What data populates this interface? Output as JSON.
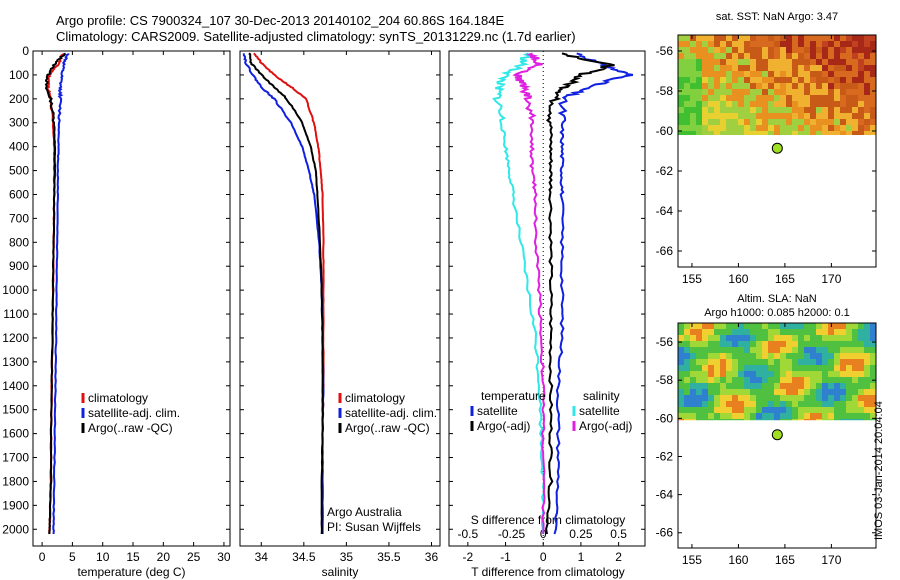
{
  "header": {
    "line1": "Argo profile: CS 7900324_107 30-Dec-2013 20140102_204 60.86S 164.184E",
    "line2": "Climatology: CARS2009. Satellite-adjusted climatology: synTS_20131229.nc (1.7d earlier)"
  },
  "side_label": "IMOS 03-Jan-2014 20:04:04",
  "colors": {
    "climatology": "#e01010",
    "satellite": "#1020e0",
    "argo": "#000000",
    "s_satellite": "#30e8e8",
    "s_argo": "#e020e0",
    "marker": "#a0e020"
  },
  "chart_data": [
    {
      "id": "temperature",
      "type": "line",
      "xlabel": "temperature (deg C)",
      "ylabel": "",
      "xlim": [
        -1.5,
        31
      ],
      "ylim": [
        2070,
        0
      ],
      "xticks": [
        0,
        5,
        10,
        15,
        20,
        25,
        30
      ],
      "yticks": [
        0,
        100,
        200,
        300,
        400,
        500,
        600,
        700,
        800,
        900,
        1000,
        1100,
        1200,
        1300,
        1400,
        1500,
        1600,
        1700,
        1800,
        1900,
        2000
      ],
      "legend": [
        "climatology",
        "satellite-adj. clim.",
        "Argo(..raw -QC)"
      ],
      "legend_position": "lower-right",
      "series": [
        {
          "name": "climatology",
          "color": "#e01010",
          "x": [
            3.4,
            2.8,
            1.2,
            1.0,
            1.3,
            1.8,
            2.0,
            2.0,
            2.0,
            1.9,
            1.8,
            1.7,
            1.6,
            1.5,
            1.4,
            1.3,
            1.2
          ],
          "y": [
            10,
            50,
            100,
            150,
            200,
            300,
            400,
            500,
            600,
            800,
            1000,
            1200,
            1400,
            1600,
            1800,
            1950,
            2020
          ]
        },
        {
          "name": "satellite-adj. clim.",
          "color": "#1020e0",
          "x": [
            4.3,
            3.6,
            3.2,
            3.0,
            3.0,
            2.8,
            2.7,
            2.6,
            2.6,
            2.5,
            2.4,
            2.3,
            2.2,
            2.1,
            2.0,
            1.9,
            1.9
          ],
          "y": [
            10,
            50,
            100,
            150,
            200,
            300,
            400,
            500,
            600,
            800,
            1000,
            1200,
            1400,
            1600,
            1800,
            1950,
            2020
          ]
        },
        {
          "name": "Argo(..raw -QC)",
          "color": "#000000",
          "x": [
            3.8,
            2.2,
            1.0,
            0.6,
            1.4,
            2.0,
            2.1,
            2.1,
            2.0,
            1.9,
            1.8,
            1.7,
            1.6,
            1.5,
            1.5,
            1.3,
            1.2
          ],
          "y": [
            10,
            50,
            100,
            150,
            200,
            300,
            400,
            500,
            600,
            800,
            1000,
            1200,
            1400,
            1600,
            1800,
            1950,
            2020
          ]
        }
      ]
    },
    {
      "id": "salinity",
      "type": "line",
      "xlabel": "salinity",
      "ylabel": "",
      "xlim": [
        33.75,
        36.1
      ],
      "ylim": [
        2070,
        0
      ],
      "xticks": [
        34,
        34.5,
        35,
        35.5,
        36
      ],
      "legend": [
        "climatology",
        "satellite-adj. clim.",
        "Argo(..raw -QC)"
      ],
      "legend_position": "lower-right",
      "annotation": [
        "Argo Australia",
        "PI: Susan Wijffels"
      ],
      "series": [
        {
          "name": "climatology",
          "color": "#e01010",
          "x": [
            33.92,
            34.0,
            34.15,
            34.35,
            34.52,
            34.62,
            34.67,
            34.7,
            34.72,
            34.73,
            34.73,
            34.73,
            34.73,
            34.72,
            34.72,
            34.72
          ],
          "y": [
            10,
            50,
            100,
            150,
            200,
            300,
            400,
            500,
            600,
            800,
            1000,
            1200,
            1400,
            1600,
            1800,
            2020
          ]
        },
        {
          "name": "satellite-adj. clim.",
          "color": "#1020e0",
          "x": [
            33.8,
            33.82,
            33.9,
            34.0,
            34.15,
            34.35,
            34.48,
            34.56,
            34.62,
            34.68,
            34.71,
            34.72,
            34.73,
            34.72,
            34.72,
            34.72
          ],
          "y": [
            10,
            50,
            100,
            150,
            200,
            300,
            400,
            500,
            600,
            800,
            1000,
            1200,
            1400,
            1600,
            1800,
            2020
          ]
        },
        {
          "name": "Argo(..raw -QC)",
          "color": "#000000",
          "x": [
            33.86,
            33.88,
            34.0,
            34.15,
            34.3,
            34.48,
            34.58,
            34.64,
            34.66,
            34.69,
            34.71,
            34.72,
            34.72,
            34.72,
            34.71,
            34.71
          ],
          "y": [
            10,
            50,
            100,
            150,
            200,
            300,
            400,
            500,
            600,
            800,
            1000,
            1200,
            1400,
            1600,
            1800,
            2020
          ]
        }
      ]
    },
    {
      "id": "difference",
      "type": "line",
      "xlabel": "T difference from climatology",
      "toplabel": "S difference from climatology",
      "xlim": [
        -2.5,
        2.7
      ],
      "ylim": [
        2070,
        0
      ],
      "xticks": [
        -2,
        -1,
        0,
        1,
        2
      ],
      "xticks_s": [
        "-0.5",
        "-0.25",
        "0",
        "0.25",
        "0.5"
      ],
      "legend_t_title": "temperature",
      "legend_s_title": "salinity",
      "legend_t": [
        "satellite",
        "Argo(-adj)"
      ],
      "legend_s": [
        "satellite",
        "Argo(-adj)"
      ],
      "series": [
        {
          "name": "T satellite",
          "color": "#1020e0",
          "x": [
            0.9,
            1.6,
            2.3,
            1.2,
            0.5,
            0.5,
            0.5,
            0.5,
            0.5,
            0.5,
            0.5,
            0.5,
            0.4,
            0.4,
            0.4,
            0.3
          ],
          "y": [
            10,
            60,
            100,
            150,
            200,
            300,
            400,
            500,
            600,
            800,
            1000,
            1200,
            1400,
            1600,
            1800,
            2020
          ]
        },
        {
          "name": "T Argo(-adj)",
          "color": "#000000",
          "x": [
            0.5,
            1.8,
            1.0,
            0.6,
            0.3,
            0.2,
            0.2,
            0.2,
            0.2,
            0.2,
            0.2,
            0.2,
            0.2,
            0.2,
            0.2,
            0.1
          ],
          "y": [
            10,
            60,
            100,
            150,
            200,
            300,
            400,
            500,
            600,
            800,
            1000,
            1200,
            1400,
            1600,
            1800,
            2020
          ]
        },
        {
          "name": "S satellite",
          "color": "#30e8e8",
          "x": [
            -0.4,
            -0.6,
            -1.0,
            -1.2,
            -1.2,
            -1.1,
            -1.0,
            -0.9,
            -0.8,
            -0.6,
            -0.4,
            -0.2,
            -0.1,
            -0.05,
            0.0,
            0.0
          ],
          "y": [
            10,
            60,
            100,
            150,
            200,
            300,
            400,
            500,
            600,
            800,
            1000,
            1200,
            1400,
            1600,
            1800,
            2020
          ]
        },
        {
          "name": "S Argo(-adj)",
          "color": "#e020e0",
          "x": [
            -0.3,
            -0.1,
            -0.7,
            -0.5,
            -0.4,
            -0.3,
            -0.3,
            -0.3,
            -0.2,
            -0.2,
            -0.1,
            -0.05,
            0.0,
            0.0,
            0.0,
            0.0
          ],
          "y": [
            10,
            60,
            100,
            150,
            200,
            300,
            400,
            500,
            600,
            800,
            1000,
            1200,
            1400,
            1600,
            1800,
            2020
          ]
        }
      ]
    },
    {
      "id": "sst-map",
      "type": "heatmap",
      "title": "sat. SST: NaN Argo: 3.47",
      "xlim": [
        153.5,
        174.8
      ],
      "ylim": [
        -66.8,
        -55.2
      ],
      "xticks": [
        155,
        160,
        165,
        170
      ],
      "yticks": [
        -56,
        -58,
        -60,
        -62,
        -64,
        -66
      ],
      "data_bottom_lat": -60.2,
      "argo_position": {
        "lon": 164.184,
        "lat": -60.86
      }
    },
    {
      "id": "sla-map",
      "type": "heatmap",
      "title1": "Altim. SLA: NaN",
      "title2": "Argo h1000: 0.085 h2000: 0.1",
      "xlim": [
        153.5,
        174.8
      ],
      "ylim": [
        -66.8,
        -55.0
      ],
      "xticks": [
        155,
        160,
        165,
        170
      ],
      "yticks": [
        -56,
        -58,
        -60,
        -62,
        -64,
        -66
      ],
      "data_bottom_lat": -60.1,
      "argo_position": {
        "lon": 164.184,
        "lat": -60.86
      }
    }
  ]
}
